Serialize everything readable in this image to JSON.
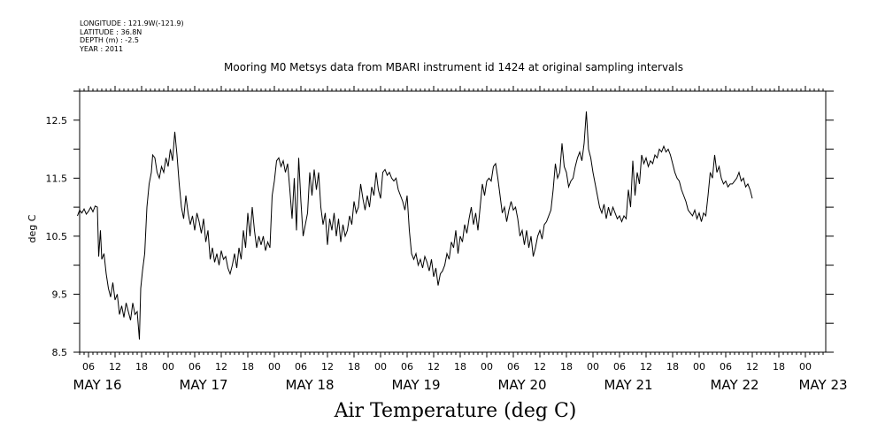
{
  "header": {
    "longitude": "LONGITUDE : 121.9W(-121.9)",
    "latitude": "LATITUDE : 36.8N",
    "depth": "DEPTH (m) : -2.5",
    "year": "YEAR : 2011"
  },
  "chart_data": {
    "type": "line",
    "title": "Mooring M0 Metsys data from MBARI instrument id 1424 at original sampling intervals",
    "caption": "Air Temperature (deg C)",
    "ylabel": "deg C",
    "xlabel": "",
    "ylim": [
      8.5,
      13.0
    ],
    "yticks": [
      8.5,
      9.5,
      10.5,
      11.5,
      12.5
    ],
    "yticks_labels": [
      "8.5",
      "9.5",
      "10.5",
      "11.5",
      "12.5"
    ],
    "xlim_hours": [
      0,
      168
    ],
    "hour_ticks": [
      "06",
      "12",
      "18",
      "00",
      "06",
      "12",
      "18",
      "00",
      "06",
      "12",
      "18",
      "00",
      "06",
      "12",
      "18",
      "00",
      "06",
      "12",
      "18",
      "00",
      "06",
      "12",
      "18",
      "00",
      "06",
      "12",
      "18",
      "00"
    ],
    "day_labels": [
      "MAY 16",
      "MAY 17",
      "MAY 18",
      "MAY 19",
      "MAY 20",
      "MAY 21",
      "MAY 22",
      "MAY 23"
    ],
    "grid": false,
    "series": [
      {
        "values": [
          [
            3.5,
            10.85
          ],
          [
            4.0,
            10.95
          ],
          [
            4.5,
            10.9
          ],
          [
            5.0,
            10.97
          ],
          [
            5.5,
            10.88
          ],
          [
            6.0,
            10.93
          ],
          [
            6.5,
            11.0
          ],
          [
            7.0,
            10.92
          ],
          [
            7.5,
            11.02
          ],
          [
            8.0,
            11.0
          ],
          [
            8.3,
            10.15
          ],
          [
            8.7,
            10.6
          ],
          [
            9.0,
            10.1
          ],
          [
            9.5,
            10.2
          ],
          [
            10.0,
            9.85
          ],
          [
            10.5,
            9.6
          ],
          [
            11.0,
            9.45
          ],
          [
            11.5,
            9.7
          ],
          [
            12.0,
            9.4
          ],
          [
            12.5,
            9.5
          ],
          [
            13.0,
            9.15
          ],
          [
            13.5,
            9.3
          ],
          [
            14.0,
            9.1
          ],
          [
            14.5,
            9.35
          ],
          [
            15.0,
            9.2
          ],
          [
            15.5,
            9.05
          ],
          [
            16.0,
            9.35
          ],
          [
            16.5,
            9.15
          ],
          [
            17.0,
            9.2
          ],
          [
            17.5,
            8.72
          ],
          [
            17.8,
            9.6
          ],
          [
            18.2,
            9.9
          ],
          [
            18.7,
            10.2
          ],
          [
            19.2,
            11.0
          ],
          [
            19.7,
            11.4
          ],
          [
            20.2,
            11.6
          ],
          [
            20.5,
            11.9
          ],
          [
            21.0,
            11.85
          ],
          [
            21.5,
            11.6
          ],
          [
            22.0,
            11.5
          ],
          [
            22.5,
            11.7
          ],
          [
            23.0,
            11.6
          ],
          [
            23.5,
            11.85
          ],
          [
            24.0,
            11.7
          ],
          [
            24.5,
            12.0
          ],
          [
            25.0,
            11.8
          ],
          [
            25.5,
            12.3
          ],
          [
            26.0,
            11.9
          ],
          [
            26.5,
            11.4
          ],
          [
            27.0,
            11.0
          ],
          [
            27.5,
            10.8
          ],
          [
            28.0,
            11.2
          ],
          [
            28.5,
            10.9
          ],
          [
            29.0,
            10.7
          ],
          [
            29.5,
            10.85
          ],
          [
            30.0,
            10.6
          ],
          [
            30.5,
            10.9
          ],
          [
            31.0,
            10.75
          ],
          [
            31.5,
            10.55
          ],
          [
            32.0,
            10.8
          ],
          [
            32.5,
            10.4
          ],
          [
            33.0,
            10.6
          ],
          [
            33.5,
            10.1
          ],
          [
            34.0,
            10.3
          ],
          [
            34.5,
            10.05
          ],
          [
            35.0,
            10.2
          ],
          [
            35.5,
            10.0
          ],
          [
            36.0,
            10.25
          ],
          [
            36.5,
            10.1
          ],
          [
            37.0,
            10.15
          ],
          [
            37.5,
            9.95
          ],
          [
            38.0,
            9.85
          ],
          [
            38.5,
            10.0
          ],
          [
            39.0,
            10.2
          ],
          [
            39.5,
            9.95
          ],
          [
            40.0,
            10.3
          ],
          [
            40.5,
            10.1
          ],
          [
            41.0,
            10.6
          ],
          [
            41.5,
            10.3
          ],
          [
            42.0,
            10.9
          ],
          [
            42.5,
            10.5
          ],
          [
            43.0,
            11.0
          ],
          [
            43.5,
            10.6
          ],
          [
            44.0,
            10.3
          ],
          [
            44.5,
            10.5
          ],
          [
            45.0,
            10.35
          ],
          [
            45.5,
            10.5
          ],
          [
            46.0,
            10.25
          ],
          [
            46.5,
            10.4
          ],
          [
            47.0,
            10.3
          ],
          [
            47.5,
            11.2
          ],
          [
            48.0,
            11.45
          ],
          [
            48.5,
            11.8
          ],
          [
            49.0,
            11.85
          ],
          [
            49.5,
            11.7
          ],
          [
            50.0,
            11.8
          ],
          [
            50.5,
            11.6
          ],
          [
            51.0,
            11.75
          ],
          [
            51.5,
            11.3
          ],
          [
            52.0,
            10.8
          ],
          [
            52.5,
            11.5
          ],
          [
            53.0,
            10.6
          ],
          [
            53.5,
            11.85
          ],
          [
            54.0,
            11.1
          ],
          [
            54.5,
            10.5
          ],
          [
            55.0,
            10.7
          ],
          [
            55.5,
            10.9
          ],
          [
            56.0,
            11.6
          ],
          [
            56.5,
            11.2
          ],
          [
            57.0,
            11.65
          ],
          [
            57.5,
            11.3
          ],
          [
            58.0,
            11.6
          ],
          [
            58.5,
            11.0
          ],
          [
            59.0,
            10.7
          ],
          [
            59.5,
            10.9
          ],
          [
            60.0,
            10.35
          ],
          [
            60.5,
            10.8
          ],
          [
            61.0,
            10.6
          ],
          [
            61.5,
            10.9
          ],
          [
            62.0,
            10.5
          ],
          [
            62.5,
            10.8
          ],
          [
            63.0,
            10.4
          ],
          [
            63.5,
            10.7
          ],
          [
            64.0,
            10.5
          ],
          [
            64.5,
            10.6
          ],
          [
            65.0,
            10.85
          ],
          [
            65.5,
            10.7
          ],
          [
            66.0,
            11.1
          ],
          [
            66.5,
            10.9
          ],
          [
            67.0,
            11.0
          ],
          [
            67.5,
            11.4
          ],
          [
            68.0,
            11.15
          ],
          [
            68.5,
            10.95
          ],
          [
            69.0,
            11.2
          ],
          [
            69.5,
            11.0
          ],
          [
            70.0,
            11.35
          ],
          [
            70.5,
            11.2
          ],
          [
            71.0,
            11.6
          ],
          [
            71.5,
            11.3
          ],
          [
            72.0,
            11.15
          ],
          [
            72.5,
            11.6
          ],
          [
            73.0,
            11.65
          ],
          [
            73.5,
            11.55
          ],
          [
            74.0,
            11.6
          ],
          [
            74.5,
            11.5
          ],
          [
            75.0,
            11.45
          ],
          [
            75.5,
            11.5
          ],
          [
            76.0,
            11.3
          ],
          [
            76.5,
            11.2
          ],
          [
            77.0,
            11.1
          ],
          [
            77.5,
            10.95
          ],
          [
            78.0,
            11.2
          ],
          [
            78.5,
            10.6
          ],
          [
            79.0,
            10.2
          ],
          [
            79.5,
            10.1
          ],
          [
            80.0,
            10.2
          ],
          [
            80.5,
            10.0
          ],
          [
            81.0,
            10.1
          ],
          [
            81.5,
            9.95
          ],
          [
            82.0,
            10.15
          ],
          [
            82.5,
            10.05
          ],
          [
            83.0,
            9.9
          ],
          [
            83.5,
            10.1
          ],
          [
            84.0,
            9.8
          ],
          [
            84.5,
            9.95
          ],
          [
            85.0,
            9.65
          ],
          [
            85.5,
            9.85
          ],
          [
            86.0,
            9.9
          ],
          [
            86.5,
            10.0
          ],
          [
            87.0,
            10.2
          ],
          [
            87.5,
            10.1
          ],
          [
            88.0,
            10.4
          ],
          [
            88.5,
            10.3
          ],
          [
            89.0,
            10.6
          ],
          [
            89.5,
            10.2
          ],
          [
            90.0,
            10.5
          ],
          [
            90.5,
            10.4
          ],
          [
            91.0,
            10.7
          ],
          [
            91.5,
            10.55
          ],
          [
            92.0,
            10.8
          ],
          [
            92.5,
            11.0
          ],
          [
            93.0,
            10.7
          ],
          [
            93.5,
            10.9
          ],
          [
            94.0,
            10.6
          ],
          [
            94.5,
            11.0
          ],
          [
            95.0,
            11.4
          ],
          [
            95.5,
            11.2
          ],
          [
            96.0,
            11.45
          ],
          [
            96.5,
            11.5
          ],
          [
            97.0,
            11.45
          ],
          [
            97.5,
            11.7
          ],
          [
            98.0,
            11.75
          ],
          [
            98.5,
            11.5
          ],
          [
            99.0,
            11.2
          ],
          [
            99.5,
            10.9
          ],
          [
            100.0,
            11.0
          ],
          [
            100.5,
            10.75
          ],
          [
            101.0,
            10.95
          ],
          [
            101.5,
            11.1
          ],
          [
            102.0,
            10.95
          ],
          [
            102.5,
            11.0
          ],
          [
            103.0,
            10.8
          ],
          [
            103.5,
            10.5
          ],
          [
            104.0,
            10.6
          ],
          [
            104.5,
            10.35
          ],
          [
            105.0,
            10.6
          ],
          [
            105.5,
            10.3
          ],
          [
            106.0,
            10.5
          ],
          [
            106.5,
            10.15
          ],
          [
            107.0,
            10.3
          ],
          [
            107.5,
            10.5
          ],
          [
            108.0,
            10.6
          ],
          [
            108.5,
            10.45
          ],
          [
            109.0,
            10.7
          ],
          [
            109.5,
            10.75
          ],
          [
            110.0,
            10.85
          ],
          [
            110.5,
            10.95
          ],
          [
            111.0,
            11.3
          ],
          [
            111.5,
            11.75
          ],
          [
            112.0,
            11.5
          ],
          [
            112.5,
            11.6
          ],
          [
            113.0,
            12.1
          ],
          [
            113.5,
            11.7
          ],
          [
            114.0,
            11.6
          ],
          [
            114.5,
            11.35
          ],
          [
            115.0,
            11.45
          ],
          [
            115.5,
            11.5
          ],
          [
            116.0,
            11.7
          ],
          [
            116.5,
            11.85
          ],
          [
            117.0,
            11.95
          ],
          [
            117.5,
            11.8
          ],
          [
            118.0,
            12.1
          ],
          [
            118.5,
            12.65
          ],
          [
            119.0,
            12.0
          ],
          [
            119.5,
            11.85
          ],
          [
            120.0,
            11.6
          ],
          [
            120.5,
            11.4
          ],
          [
            121.0,
            11.2
          ],
          [
            121.5,
            11.0
          ],
          [
            122.0,
            10.9
          ],
          [
            122.5,
            11.05
          ],
          [
            123.0,
            10.8
          ],
          [
            123.5,
            11.0
          ],
          [
            124.0,
            10.85
          ],
          [
            124.5,
            11.0
          ],
          [
            125.0,
            10.9
          ],
          [
            125.5,
            10.8
          ],
          [
            126.0,
            10.85
          ],
          [
            126.5,
            10.75
          ],
          [
            127.0,
            10.85
          ],
          [
            127.5,
            10.8
          ],
          [
            128.0,
            11.3
          ],
          [
            128.5,
            11.0
          ],
          [
            129.0,
            11.8
          ],
          [
            129.5,
            11.2
          ],
          [
            130.0,
            11.6
          ],
          [
            130.5,
            11.4
          ],
          [
            131.0,
            11.9
          ],
          [
            131.5,
            11.75
          ],
          [
            132.0,
            11.85
          ],
          [
            132.5,
            11.7
          ],
          [
            133.0,
            11.8
          ],
          [
            133.5,
            11.75
          ],
          [
            134.0,
            11.9
          ],
          [
            134.5,
            11.85
          ],
          [
            135.0,
            12.0
          ],
          [
            135.5,
            11.95
          ],
          [
            136.0,
            12.05
          ],
          [
            136.5,
            11.95
          ],
          [
            137.0,
            12.0
          ],
          [
            137.5,
            11.9
          ],
          [
            138.0,
            11.75
          ],
          [
            138.5,
            11.6
          ],
          [
            139.0,
            11.5
          ],
          [
            139.5,
            11.45
          ],
          [
            140.0,
            11.3
          ],
          [
            140.5,
            11.2
          ],
          [
            141.0,
            11.1
          ],
          [
            141.5,
            10.95
          ],
          [
            142.0,
            10.9
          ],
          [
            142.5,
            10.85
          ],
          [
            143.0,
            10.95
          ],
          [
            143.5,
            10.8
          ],
          [
            144.0,
            10.9
          ],
          [
            144.5,
            10.75
          ],
          [
            145.0,
            10.9
          ],
          [
            145.5,
            10.85
          ],
          [
            146.0,
            11.2
          ],
          [
            146.5,
            11.6
          ],
          [
            147.0,
            11.5
          ],
          [
            147.5,
            11.9
          ],
          [
            148.0,
            11.6
          ],
          [
            148.5,
            11.7
          ],
          [
            149.0,
            11.5
          ],
          [
            149.5,
            11.4
          ],
          [
            150.0,
            11.45
          ],
          [
            150.5,
            11.35
          ],
          [
            151.0,
            11.4
          ],
          [
            151.5,
            11.4
          ],
          [
            152.0,
            11.45
          ],
          [
            152.5,
            11.5
          ],
          [
            153.0,
            11.6
          ],
          [
            153.5,
            11.45
          ],
          [
            154.0,
            11.5
          ],
          [
            154.5,
            11.35
          ],
          [
            155.0,
            11.4
          ],
          [
            155.5,
            11.3
          ],
          [
            156.0,
            11.15
          ]
        ]
      }
    ]
  }
}
